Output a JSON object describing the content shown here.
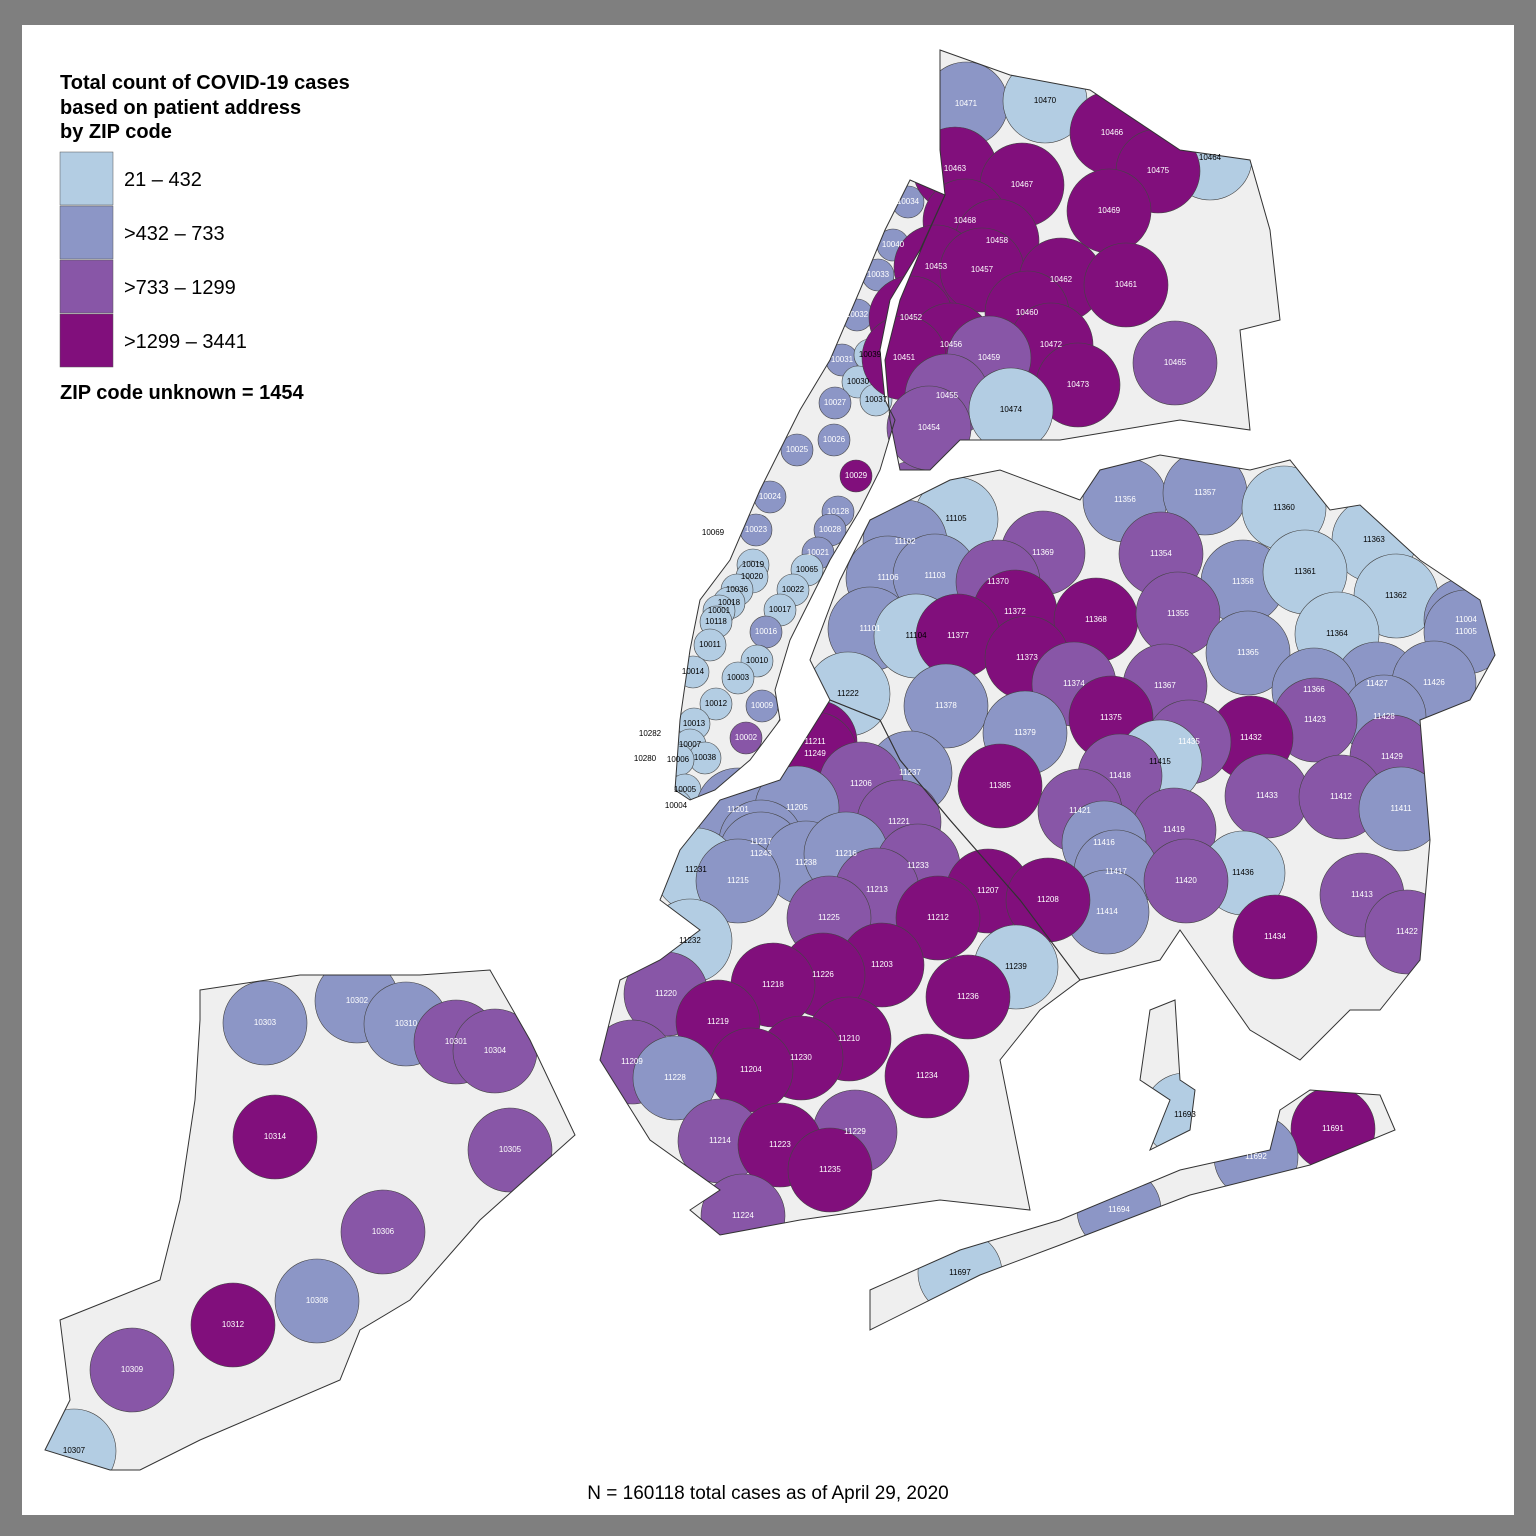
{
  "legend": {
    "title": [
      "Total count of COVID-19 cases",
      "based on patient address",
      "by ZIP code"
    ],
    "items": [
      {
        "label": "21 – 432",
        "color": "#b3cde3"
      },
      {
        "label": ">432 – 733",
        "color": "#8c96c6"
      },
      {
        "label": ">733 – 1299",
        "color": "#8856a7"
      },
      {
        "label": ">1299 – 3441",
        "color": "#810f7c"
      }
    ],
    "unknown": "ZIP code unknown = 1454"
  },
  "footnote": "N = 160118 total cases as of April 29, 2020",
  "zips": [
    {
      "zip": "10034",
      "bin": 1
    },
    {
      "zip": "10040",
      "bin": 1
    },
    {
      "zip": "10033",
      "bin": 1
    },
    {
      "zip": "10032",
      "bin": 1
    },
    {
      "zip": "10031",
      "bin": 1
    },
    {
      "zip": "10039",
      "bin": 0
    },
    {
      "zip": "10030",
      "bin": 0
    },
    {
      "zip": "10037",
      "bin": 0
    },
    {
      "zip": "10027",
      "bin": 1
    },
    {
      "zip": "10026",
      "bin": 1
    },
    {
      "zip": "10025",
      "bin": 1
    },
    {
      "zip": "10029",
      "bin": 3
    },
    {
      "zip": "10035",
      "bin": 2
    },
    {
      "zip": "10024",
      "bin": 1
    },
    {
      "zip": "10128",
      "bin": 1
    },
    {
      "zip": "10028",
      "bin": 1
    },
    {
      "zip": "10023",
      "bin": 1
    },
    {
      "zip": "10069",
      "bin": 0
    },
    {
      "zip": "10021",
      "bin": 1
    },
    {
      "zip": "10019",
      "bin": 0
    },
    {
      "zip": "10020",
      "bin": 0
    },
    {
      "zip": "10065",
      "bin": 0
    },
    {
      "zip": "10036",
      "bin": 0
    },
    {
      "zip": "10022",
      "bin": 0
    },
    {
      "zip": "10018",
      "bin": 0
    },
    {
      "zip": "10001",
      "bin": 0
    },
    {
      "zip": "10017",
      "bin": 0
    },
    {
      "zip": "10118",
      "bin": 0
    },
    {
      "zip": "10016",
      "bin": 1
    },
    {
      "zip": "10011",
      "bin": 0
    },
    {
      "zip": "10010",
      "bin": 0
    },
    {
      "zip": "10014",
      "bin": 0
    },
    {
      "zip": "10003",
      "bin": 0
    },
    {
      "zip": "10012",
      "bin": 0
    },
    {
      "zip": "10009",
      "bin": 1
    },
    {
      "zip": "10013",
      "bin": 0
    },
    {
      "zip": "10002",
      "bin": 2
    },
    {
      "zip": "10282",
      "bin": 0
    },
    {
      "zip": "10007",
      "bin": 0
    },
    {
      "zip": "10038",
      "bin": 0
    },
    {
      "zip": "10280",
      "bin": 0
    },
    {
      "zip": "10006",
      "bin": 0
    },
    {
      "zip": "10005",
      "bin": 0
    },
    {
      "zip": "10004",
      "bin": 0
    },
    {
      "zip": "10471",
      "bin": 1
    },
    {
      "zip": "10470",
      "bin": 0
    },
    {
      "zip": "10466",
      "bin": 3
    },
    {
      "zip": "10464",
      "bin": 0
    },
    {
      "zip": "10463",
      "bin": 3
    },
    {
      "zip": "10467",
      "bin": 3
    },
    {
      "zip": "10475",
      "bin": 3
    },
    {
      "zip": "10469",
      "bin": 3
    },
    {
      "zip": "10468",
      "bin": 3
    },
    {
      "zip": "10458",
      "bin": 3
    },
    {
      "zip": "10453",
      "bin": 3
    },
    {
      "zip": "10457",
      "bin": 3
    },
    {
      "zip": "10462",
      "bin": 3
    },
    {
      "zip": "10461",
      "bin": 3
    },
    {
      "zip": "10452",
      "bin": 3
    },
    {
      "zip": "10460",
      "bin": 3
    },
    {
      "zip": "10456",
      "bin": 3
    },
    {
      "zip": "10472",
      "bin": 3
    },
    {
      "zip": "10451",
      "bin": 3
    },
    {
      "zip": "10459",
      "bin": 2
    },
    {
      "zip": "10465",
      "bin": 2
    },
    {
      "zip": "10473",
      "bin": 3
    },
    {
      "zip": "10455",
      "bin": 2
    },
    {
      "zip": "10474",
      "bin": 0
    },
    {
      "zip": "10454",
      "bin": 2
    },
    {
      "zip": "11356",
      "bin": 1
    },
    {
      "zip": "11357",
      "bin": 1
    },
    {
      "zip": "11360",
      "bin": 0
    },
    {
      "zip": "11363",
      "bin": 0
    },
    {
      "zip": "11105",
      "bin": 0
    },
    {
      "zip": "11102",
      "bin": 1
    },
    {
      "zip": "11369",
      "bin": 2
    },
    {
      "zip": "11354",
      "bin": 2
    },
    {
      "zip": "11358",
      "bin": 1
    },
    {
      "zip": "11361",
      "bin": 0
    },
    {
      "zip": "11362",
      "bin": 0
    },
    {
      "zip": "11106",
      "bin": 1
    },
    {
      "zip": "11103",
      "bin": 1
    },
    {
      "zip": "11370",
      "bin": 2
    },
    {
      "zip": "11372",
      "bin": 3
    },
    {
      "zip": "11368",
      "bin": 3
    },
    {
      "zip": "11355",
      "bin": 2
    },
    {
      "zip": "11004",
      "bin": 1
    },
    {
      "zip": "11005",
      "bin": 1
    },
    {
      "zip": "11364",
      "bin": 0
    },
    {
      "zip": "11101",
      "bin": 1
    },
    {
      "zip": "11104",
      "bin": 0
    },
    {
      "zip": "11377",
      "bin": 3
    },
    {
      "zip": "11373",
      "bin": 3
    },
    {
      "zip": "11365",
      "bin": 1
    },
    {
      "zip": "11427",
      "bin": 1
    },
    {
      "zip": "11426",
      "bin": 1
    },
    {
      "zip": "11374",
      "bin": 2
    },
    {
      "zip": "11367",
      "bin": 2
    },
    {
      "zip": "11366",
      "bin": 1
    },
    {
      "zip": "11428",
      "bin": 1
    },
    {
      "zip": "11378",
      "bin": 1
    },
    {
      "zip": "11375",
      "bin": 3
    },
    {
      "zip": "11423",
      "bin": 2
    },
    {
      "zip": "11379",
      "bin": 1
    },
    {
      "zip": "11432",
      "bin": 3
    },
    {
      "zip": "11435",
      "bin": 2
    },
    {
      "zip": "11429",
      "bin": 2
    },
    {
      "zip": "11415",
      "bin": 0
    },
    {
      "zip": "11385",
      "bin": 3
    },
    {
      "zip": "11418",
      "bin": 2
    },
    {
      "zip": "11433",
      "bin": 2
    },
    {
      "zip": "11412",
      "bin": 2
    },
    {
      "zip": "11421",
      "bin": 2
    },
    {
      "zip": "11419",
      "bin": 2
    },
    {
      "zip": "11411",
      "bin": 1
    },
    {
      "zip": "11416",
      "bin": 1
    },
    {
      "zip": "11417",
      "bin": 1
    },
    {
      "zip": "11436",
      "bin": 0
    },
    {
      "zip": "11420",
      "bin": 2
    },
    {
      "zip": "11413",
      "bin": 2
    },
    {
      "zip": "11414",
      "bin": 1
    },
    {
      "zip": "11434",
      "bin": 3
    },
    {
      "zip": "11422",
      "bin": 2
    },
    {
      "zip": "11693",
      "bin": 0
    },
    {
      "zip": "11691",
      "bin": 3
    },
    {
      "zip": "11692",
      "bin": 1
    },
    {
      "zip": "11694",
      "bin": 1
    },
    {
      "zip": "11697",
      "bin": 0
    },
    {
      "zip": "11222",
      "bin": 0
    },
    {
      "zip": "11211",
      "bin": 3
    },
    {
      "zip": "11249",
      "bin": 3
    },
    {
      "zip": "11237",
      "bin": 1
    },
    {
      "zip": "11206",
      "bin": 2
    },
    {
      "zip": "11201",
      "bin": 1
    },
    {
      "zip": "11205",
      "bin": 1
    },
    {
      "zip": "11221",
      "bin": 2
    },
    {
      "zip": "11217",
      "bin": 1
    },
    {
      "zip": "11243",
      "bin": 1
    },
    {
      "zip": "11238",
      "bin": 1
    },
    {
      "zip": "11216",
      "bin": 1
    },
    {
      "zip": "11233",
      "bin": 2
    },
    {
      "zip": "11231",
      "bin": 0
    },
    {
      "zip": "11215",
      "bin": 1
    },
    {
      "zip": "11213",
      "bin": 2
    },
    {
      "zip": "11207",
      "bin": 3
    },
    {
      "zip": "11208",
      "bin": 3
    },
    {
      "zip": "11225",
      "bin": 2
    },
    {
      "zip": "11212",
      "bin": 3
    },
    {
      "zip": "11232",
      "bin": 0
    },
    {
      "zip": "11203",
      "bin": 3
    },
    {
      "zip": "11239",
      "bin": 0
    },
    {
      "zip": "11226",
      "bin": 3
    },
    {
      "zip": "11218",
      "bin": 3
    },
    {
      "zip": "11236",
      "bin": 3
    },
    {
      "zip": "11220",
      "bin": 2
    },
    {
      "zip": "11219",
      "bin": 3
    },
    {
      "zip": "11210",
      "bin": 3
    },
    {
      "zip": "11209",
      "bin": 2
    },
    {
      "zip": "11230",
      "bin": 3
    },
    {
      "zip": "11204",
      "bin": 3
    },
    {
      "zip": "11228",
      "bin": 1
    },
    {
      "zip": "11234",
      "bin": 3
    },
    {
      "zip": "11214",
      "bin": 2
    },
    {
      "zip": "11229",
      "bin": 2
    },
    {
      "zip": "11223",
      "bin": 3
    },
    {
      "zip": "11235",
      "bin": 3
    },
    {
      "zip": "11224",
      "bin": 2
    },
    {
      "zip": "10302",
      "bin": 1
    },
    {
      "zip": "10303",
      "bin": 1
    },
    {
      "zip": "10310",
      "bin": 1
    },
    {
      "zip": "10301",
      "bin": 2
    },
    {
      "zip": "10304",
      "bin": 2
    },
    {
      "zip": "10314",
      "bin": 3
    },
    {
      "zip": "10305",
      "bin": 2
    },
    {
      "zip": "10306",
      "bin": 2
    },
    {
      "zip": "10308",
      "bin": 1
    },
    {
      "zip": "10312",
      "bin": 3
    },
    {
      "zip": "10309",
      "bin": 2
    },
    {
      "zip": "10307",
      "bin": 0
    }
  ]
}
